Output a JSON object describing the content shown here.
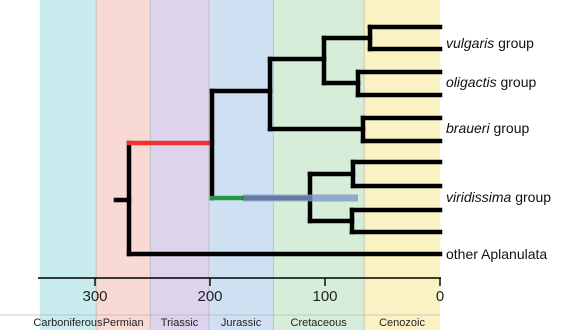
{
  "colors": {
    "carboniferous": "#c9ecee",
    "permian": "#f8d9d3",
    "triassic": "#ddd3ec",
    "jurassic": "#cfe0f2",
    "cretaceous": "#d6eed9",
    "cenozoic": "#fbf2c4",
    "tree": "#000000",
    "red_branch": "#ee3333",
    "green_branch": "#229944",
    "blue_bar": "#7f99c4"
  },
  "axis": {
    "unit_label_none": "",
    "min": 0,
    "max": 348,
    "ticks": [
      {
        "value": 300,
        "label": "300"
      },
      {
        "value": 200,
        "label": "200"
      },
      {
        "value": 100,
        "label": "100"
      },
      {
        "value": 0,
        "label": "0"
      }
    ]
  },
  "periods": [
    {
      "key": "carboniferous",
      "label": "Carboniferous",
      "start": 348,
      "end": 299
    },
    {
      "key": "permian",
      "label": "Permian",
      "start": 299,
      "end": 252
    },
    {
      "key": "triassic",
      "label": "Triassic",
      "start": 252,
      "end": 201
    },
    {
      "key": "jurassic",
      "label": "Jurassic",
      "start": 201,
      "end": 145
    },
    {
      "key": "cretaceous",
      "label": "Cretaceous",
      "start": 145,
      "end": 66
    },
    {
      "key": "cenozoic",
      "label": "Cenozoic",
      "start": 66,
      "end": 0
    }
  ],
  "clades": [
    {
      "italic": "vulgaris",
      "rest": " group"
    },
    {
      "italic": "oligactis",
      "rest": " group"
    },
    {
      "italic": "braueri",
      "rest": " group"
    },
    {
      "italic": "viridissima",
      "rest": " group"
    },
    {
      "italic": "",
      "rest": "other Aplanulata"
    }
  ]
}
